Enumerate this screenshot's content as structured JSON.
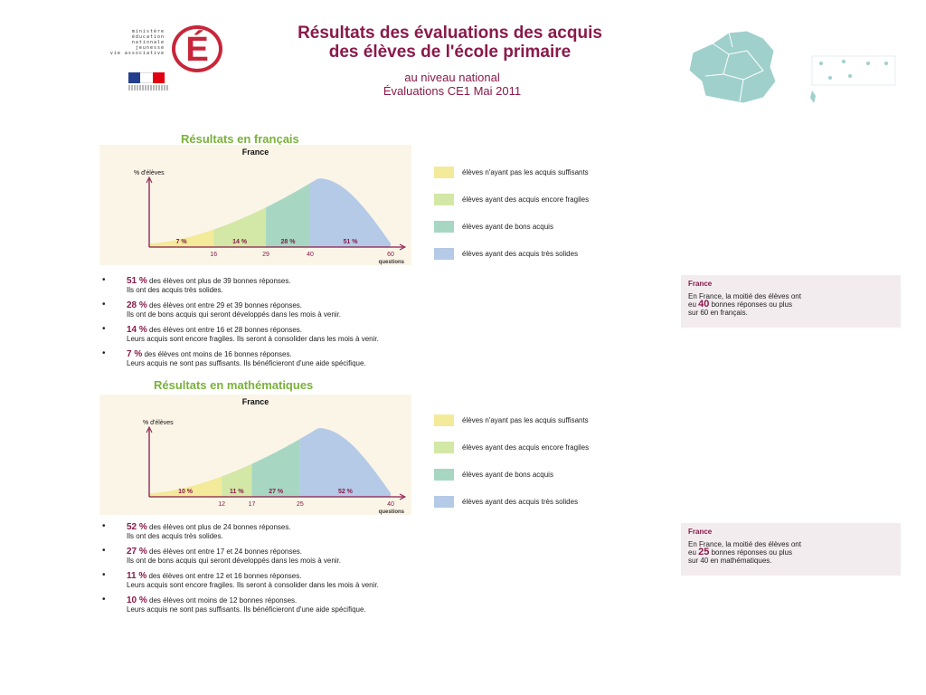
{
  "header": {
    "logo_lines": [
      "ministère",
      "éducation",
      "nationale",
      "jeunesse",
      "vie associative"
    ],
    "logo_letter": "É",
    "title_line1": "Résultats des évaluations des acquis",
    "title_line2": "des élèves de l'école primaire",
    "subtitle_line1": "au niveau national",
    "subtitle_line2": "Évaluations CE1 Mai 2011"
  },
  "colors": {
    "yellow": "#f3ea9a",
    "lightgreen": "#d3e8a6",
    "teal": "#a7d7c3",
    "blue": "#b4cae6",
    "accent": "#8a1a4a",
    "section": "#7ab23a"
  },
  "legend": [
    "élèves n'ayant pas les acquis suffisants",
    "élèves ayant des acquis encore fragiles",
    "élèves ayant de bons acquis",
    "élèves ayant des acquis très solides"
  ],
  "francais": {
    "section_title": "Résultats en français",
    "chart_title": "France",
    "ylabel": "% d'élèves",
    "xlabel": "questions",
    "bullets": [
      {
        "pct": "51 %",
        "l1": " des élèves ont plus de 39 bonnes réponses.",
        "l2": "Ils ont des acquis très solides."
      },
      {
        "pct": "28 %",
        "l1": " des élèves ont entre 29 et 39 bonnes réponses.",
        "l2": "Ils ont de bons acquis qui seront développés dans les mois à venir."
      },
      {
        "pct": "14 %",
        "l1": " des élèves ont entre 16 et 28 bonnes réponses.",
        "l2": "Leurs acquis sont encore fragiles. Ils seront à consolider dans les mois à venir."
      },
      {
        "pct": "7 %",
        "l1": " des élèves ont moins de 16 bonnes réponses.",
        "l2": "Leurs acquis ne sont pas suffisants. Ils bénéficieront d'une aide spécifique."
      }
    ],
    "info": {
      "header": "France",
      "pre": "En France, la moitié des élèves ont",
      "pre2": "eu ",
      "num": "40",
      "post": " bonnes réponses ou plus",
      "post2": "sur 60 en français."
    }
  },
  "maths": {
    "section_title": "Résultats en mathématiques",
    "chart_title": "France",
    "ylabel": "% d'élèves",
    "xlabel": "questions",
    "bullets": [
      {
        "pct": "52 %",
        "l1": " des élèves ont plus de 24 bonnes réponses.",
        "l2": "Ils ont des acquis très solides."
      },
      {
        "pct": "27 %",
        "l1": " des élèves ont entre 17 et 24 bonnes réponses.",
        "l2": "Ils ont de bons acquis qui seront développés dans les mois à venir."
      },
      {
        "pct": "11 %",
        "l1": " des élèves ont entre 12 et 16 bonnes réponses.",
        "l2": "Leurs acquis sont encore fragiles. Ils seront à consolider dans les mois à venir."
      },
      {
        "pct": "10 %",
        "l1": " des élèves ont moins de 12 bonnes réponses.",
        "l2": "Leurs acquis ne sont pas suffisants. Ils bénéficieront d'une aide spécifique."
      }
    ],
    "info": {
      "header": "France",
      "pre": "En France, la moitié des élèves ont",
      "pre2": "eu ",
      "num": "25",
      "post": " bonnes réponses ou plus",
      "post2": "sur 40 en mathématiques."
    }
  },
  "chart_data": [
    {
      "type": "area",
      "title": "France",
      "ylabel": "% d'élèves",
      "xlabel": "questions",
      "xmax": 60,
      "thresholds": [
        16,
        29,
        40,
        60
      ],
      "segments": [
        {
          "label": "7 %",
          "value": 7,
          "color": "#f3ea9a"
        },
        {
          "label": "14 %",
          "value": 14,
          "color": "#d3e8a6"
        },
        {
          "label": "28 %",
          "value": 28,
          "color": "#a7d7c3"
        },
        {
          "label": "51 %",
          "value": 51,
          "color": "#b4cae6"
        }
      ],
      "tick_labels": [
        "16",
        "29",
        "40",
        "60"
      ]
    },
    {
      "type": "area",
      "title": "France",
      "ylabel": "% d'élèves",
      "xlabel": "questions",
      "xmax": 40,
      "thresholds": [
        12,
        17,
        25,
        40
      ],
      "segments": [
        {
          "label": "10 %",
          "value": 10,
          "color": "#f3ea9a"
        },
        {
          "label": "11 %",
          "value": 11,
          "color": "#d3e8a6"
        },
        {
          "label": "27 %",
          "value": 27,
          "color": "#a7d7c3"
        },
        {
          "label": "52 %",
          "value": 52,
          "color": "#b4cae6"
        }
      ],
      "tick_labels": [
        "12",
        "17",
        "25",
        "40"
      ]
    }
  ]
}
